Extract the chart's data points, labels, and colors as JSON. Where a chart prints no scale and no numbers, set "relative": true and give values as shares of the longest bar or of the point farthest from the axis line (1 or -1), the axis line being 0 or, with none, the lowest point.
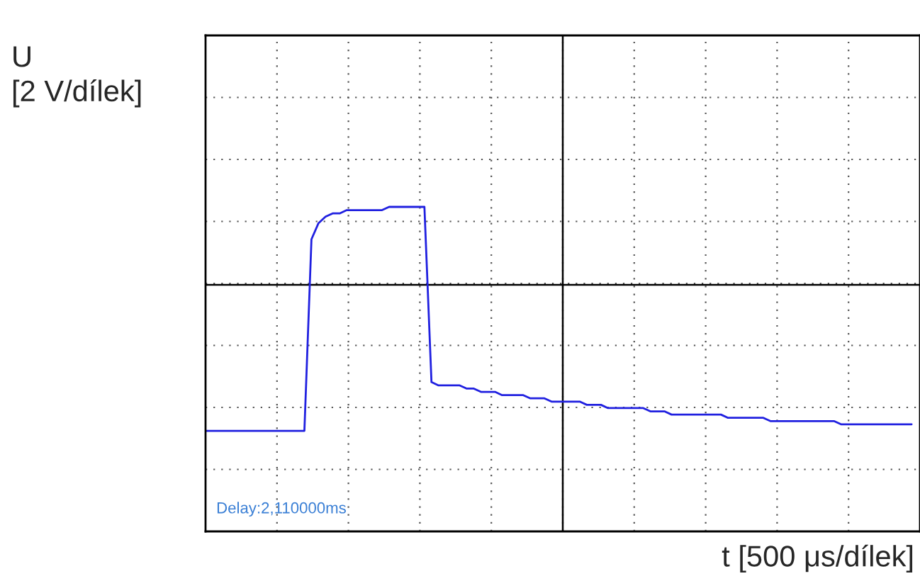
{
  "chart_data": {
    "type": "line",
    "relative": true,
    "ylabel": "U\n[2 V/dílek]",
    "xlabel": "t [500 μs/dílek]",
    "annotations": [
      "Delay:2,110000ms"
    ],
    "grid": true,
    "legend": false,
    "ref_lines": [
      {
        "axis": "y",
        "value": 0.76,
        "color": "#000000",
        "line_style": "solid"
      }
    ],
    "categories": [
      null,
      null,
      null,
      null,
      null,
      null,
      null,
      null,
      null,
      null,
      null,
      null,
      null,
      null,
      null,
      null,
      null,
      null,
      null,
      null,
      null,
      null,
      null,
      null,
      null,
      null,
      null,
      null,
      null,
      null,
      null,
      null,
      null,
      null,
      null,
      null,
      null,
      null,
      null,
      null,
      null,
      null,
      null,
      null,
      null,
      null,
      null,
      null,
      null,
      null,
      null,
      null,
      null,
      null,
      null,
      null,
      null,
      null,
      null,
      null,
      null,
      null,
      null,
      null,
      null,
      null,
      null,
      null,
      null,
      null,
      null,
      null,
      null,
      null,
      null,
      null,
      null,
      null,
      null,
      null,
      null,
      null,
      null,
      null,
      null,
      null,
      null,
      null,
      null,
      null,
      null,
      null,
      null,
      null,
      null,
      null,
      null,
      null,
      null,
      null,
      null
    ],
    "series": [
      {
        "color": "#2020e0",
        "values": [
          0.31,
          0.31,
          0.31,
          0.31,
          0.31,
          0.31,
          0.31,
          0.31,
          0.31,
          0.31,
          0.31,
          0.31,
          0.31,
          0.31,
          0.31,
          0.9,
          0.95,
          0.97,
          0.98,
          0.98,
          0.99,
          0.99,
          0.99,
          0.99,
          0.99,
          0.99,
          1.0,
          1.0,
          1.0,
          1.0,
          1.0,
          1.0,
          0.46,
          0.45,
          0.45,
          0.45,
          0.45,
          0.44,
          0.44,
          0.43,
          0.43,
          0.43,
          0.42,
          0.42,
          0.42,
          0.42,
          0.41,
          0.41,
          0.41,
          0.4,
          0.4,
          0.4,
          0.4,
          0.4,
          0.39,
          0.39,
          0.39,
          0.38,
          0.38,
          0.38,
          0.38,
          0.38,
          0.38,
          0.37,
          0.37,
          0.37,
          0.36,
          0.36,
          0.36,
          0.36,
          0.36,
          0.36,
          0.36,
          0.36,
          0.35,
          0.35,
          0.35,
          0.35,
          0.35,
          0.35,
          0.34,
          0.34,
          0.34,
          0.34,
          0.34,
          0.34,
          0.34,
          0.34,
          0.34,
          0.34,
          0.33,
          0.33,
          0.33,
          0.33,
          0.33,
          0.33,
          0.33,
          0.33,
          0.33,
          0.33,
          0.33
        ]
      }
    ]
  }
}
